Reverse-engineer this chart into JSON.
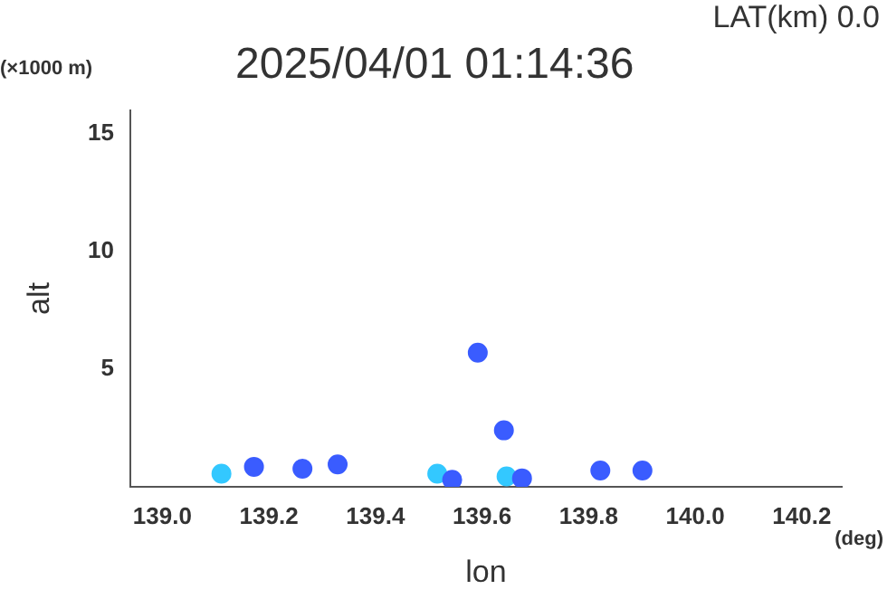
{
  "chart_data": {
    "type": "scatter",
    "title": "2025/04/01 01:14:36",
    "xlabel": "lon",
    "ylabel": "alt",
    "annotations": [
      "LAT(km) 0.0",
      "(×1000 m)",
      "(deg)"
    ],
    "series": [
      {
        "color": "#3a5cff",
        "x": [
          139.172,
          139.263,
          139.329,
          139.544,
          139.592,
          139.641,
          139.675,
          139.822,
          139.901
        ],
        "values": [
          0.85,
          0.77,
          0.95,
          0.3,
          5.7,
          2.4,
          0.36,
          0.69,
          0.69
        ]
      },
      {
        "color": "#33c8ff",
        "x": [
          139.111,
          139.516,
          139.646
        ],
        "values": [
          0.56,
          0.56,
          0.44
        ]
      }
    ],
    "xlim": [
      138.94,
      140.275
    ],
    "xticks": [
      {
        "value": 139.0,
        "label": "139.0"
      },
      {
        "value": 139.2,
        "label": "139.2"
      },
      {
        "value": 139.4,
        "label": "139.4"
      },
      {
        "value": 139.6,
        "label": "139.6"
      },
      {
        "value": 139.8,
        "label": "139.8"
      },
      {
        "value": 140.0,
        "label": "140.0"
      },
      {
        "value": 140.2,
        "label": "140.2"
      }
    ],
    "ylim": [
      0,
      16
    ],
    "yticks": [
      5,
      10,
      15
    ],
    "grid": false,
    "legend": false,
    "marker": "circle"
  }
}
